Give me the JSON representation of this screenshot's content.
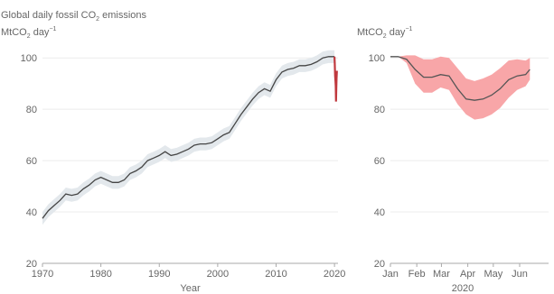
{
  "chart_data": [
    {
      "type": "line",
      "title": "Global daily fossil CO",
      "title_sub": "2",
      "title_tail": " emissions",
      "ylabel_main": "MtCO",
      "ylabel_sub": "2",
      "ylabel_tail": " day",
      "ylabel_sup": "−1",
      "xlabel": "Year",
      "xlim": [
        1970,
        2020.6
      ],
      "ylim": [
        20,
        105
      ],
      "grid": true,
      "x_ticks": [
        "1970",
        "1980",
        "1990",
        "2000",
        "2010",
        "2020"
      ],
      "y_ticks": [
        "20",
        "40",
        "60",
        "80",
        "100"
      ],
      "colors": {
        "line": "#454545",
        "band": "#e3e8ec",
        "highlight": "#c0393e"
      },
      "series": [
        {
          "x": [
            1970,
            1971,
            1972,
            1973,
            1974,
            1975,
            1976,
            1977,
            1978,
            1979,
            1980,
            1981,
            1982,
            1983,
            1984,
            1985,
            1986,
            1987,
            1988,
            1989,
            1990,
            1991,
            1992,
            1993,
            1994,
            1995,
            1996,
            1997,
            1998,
            1999,
            2000,
            2001,
            2002,
            2003,
            2004,
            2005,
            2006,
            2007,
            2008,
            2009,
            2010,
            2011,
            2012,
            2013,
            2014,
            2015,
            2016,
            2017,
            2018,
            2019,
            2019.99
          ],
          "y": [
            37.5,
            40.5,
            42.5,
            44.5,
            47,
            46.5,
            47,
            49,
            50.5,
            52.5,
            53.5,
            52.5,
            51.5,
            51.5,
            52.5,
            55,
            56,
            57.5,
            60,
            61,
            62,
            63.5,
            62,
            62.5,
            63.5,
            64.5,
            66,
            66.5,
            66.5,
            67,
            68.5,
            70,
            71,
            74.5,
            78,
            81,
            84,
            86.5,
            88,
            87,
            91.5,
            94.5,
            95.5,
            96,
            97,
            97,
            97.5,
            98.5,
            100,
            100.5,
            100.5
          ],
          "band": 2.5
        },
        {
          "x": [
            2020,
            2020.05,
            2020.1,
            2020.16,
            2020.22,
            2020.26,
            2020.3,
            2020.36,
            2020.42
          ],
          "y": [
            100.5,
            98,
            93,
            91,
            89,
            83,
            88,
            92,
            95
          ]
        }
      ]
    },
    {
      "type": "area",
      "ylabel_main": "MtCO",
      "ylabel_sub": "2",
      "ylabel_tail": " day",
      "ylabel_sup": "−1",
      "xlabel": "2020",
      "categories": [
        "Jan",
        "Feb",
        "Mar",
        "Apr",
        "May",
        "Jun"
      ],
      "ylim": [
        20,
        105
      ],
      "y_ticks": [
        "20",
        "40",
        "60",
        "80",
        "100"
      ],
      "grid": true,
      "colors": {
        "line": "#555555",
        "band": "#f8a6a8"
      },
      "series": [
        {
          "x": [
            1,
            10,
            20,
            30,
            40,
            50,
            60,
            70,
            80,
            90,
            100,
            110,
            120,
            130,
            140,
            150,
            160,
            165
          ],
          "y": [
            100.5,
            100.5,
            99.5,
            95.5,
            92.5,
            92.5,
            93.5,
            93,
            88,
            84,
            83.5,
            84,
            85.5,
            88,
            91.5,
            93,
            93.5,
            95.5
          ],
          "lower": [
            100.5,
            100.5,
            98,
            90,
            86.5,
            86.5,
            88.5,
            87.5,
            82,
            78,
            76,
            76.5,
            78,
            80.5,
            84.5,
            87.5,
            89,
            91.5
          ],
          "upper": [
            100.5,
            100.5,
            101,
            101,
            99.5,
            99.5,
            100.5,
            100,
            96,
            92,
            91,
            92,
            93.5,
            96,
            99,
            99.5,
            99,
            100
          ]
        }
      ]
    }
  ]
}
